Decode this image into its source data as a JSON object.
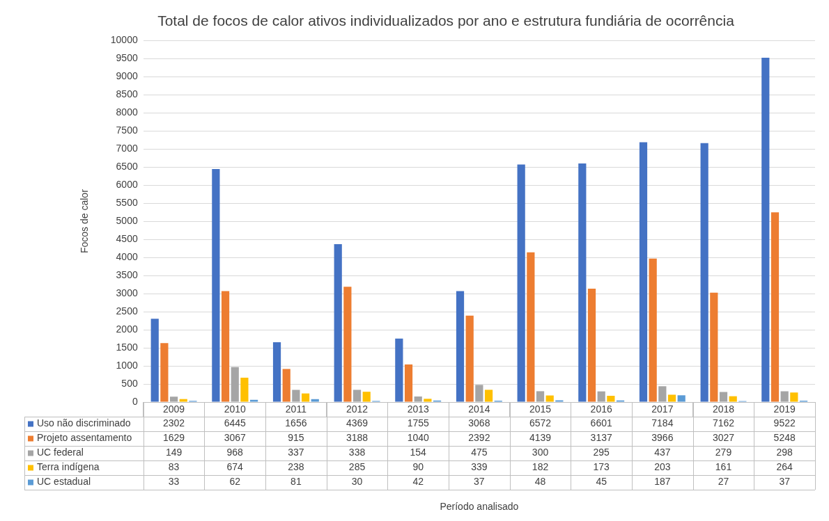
{
  "chart_data": {
    "type": "bar",
    "title": "Total de focos de calor ativos individualizados por ano e estrutura fundiária de ocorrência",
    "annotations": [
      "Período analisado"
    ],
    "ylabel": "Focos de calor",
    "categories": [
      "2009",
      "2010",
      "2011",
      "2012",
      "2013",
      "2014",
      "2015",
      "2016",
      "2017",
      "2018",
      "2019"
    ],
    "series": [
      {
        "name": "Uso não discriminado",
        "color": "#4472c4",
        "values": [
          2302,
          6445,
          1656,
          4369,
          1755,
          3068,
          6572,
          6601,
          7184,
          7162,
          9522
        ]
      },
      {
        "name": "Projeto assentamento",
        "color": "#ed7d31",
        "values": [
          1629,
          3067,
          915,
          3188,
          1040,
          2392,
          4139,
          3137,
          3966,
          3027,
          5248
        ]
      },
      {
        "name": "UC federal",
        "color": "#a5a5a5",
        "values": [
          149,
          968,
          337,
          338,
          154,
          475,
          300,
          295,
          437,
          279,
          298
        ]
      },
      {
        "name": "Terra indígena",
        "color": "#ffc000",
        "values": [
          83,
          674,
          238,
          285,
          90,
          339,
          182,
          173,
          203,
          161,
          264
        ]
      },
      {
        "name": "UC estadual",
        "color": "#5b9bd5",
        "values": [
          33,
          62,
          81,
          30,
          42,
          37,
          48,
          45,
          187,
          27,
          37
        ]
      }
    ],
    "ylim": [
      0,
      10000
    ],
    "yticks": [
      0,
      500,
      1000,
      1500,
      2000,
      2500,
      3000,
      3500,
      4000,
      4500,
      5000,
      5500,
      6000,
      6500,
      7000,
      7500,
      8000,
      8500,
      9000,
      9500,
      10000
    ],
    "grid": "y",
    "legend": "bottom left",
    "data_labels": true
  }
}
